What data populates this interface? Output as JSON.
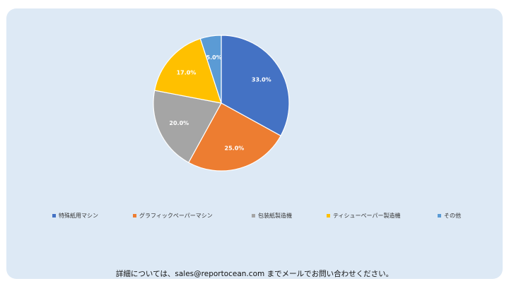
{
  "chart_data": {
    "type": "pie",
    "slices": [
      {
        "label": "特殊紙用マシン",
        "value": 33.0,
        "display": "33.0%",
        "color": "#4472C4"
      },
      {
        "label": "グラフィックペーパーマシン",
        "value": 25.0,
        "display": "25.0%",
        "color": "#ED7D31"
      },
      {
        "label": "包装紙製造機",
        "value": 20.0,
        "display": "20.0%",
        "color": "#A5A5A5"
      },
      {
        "label": "ティシューペーパー製造機",
        "value": 17.0,
        "display": "17.0%",
        "color": "#FFC000"
      },
      {
        "label": "その他",
        "value": 5.0,
        "display": "5.0%",
        "color": "#5B9BD5"
      }
    ],
    "legend_position": "bottom",
    "start_angle": "12 o'clock, clockwise"
  },
  "footer": {
    "text": "詳細については、sales@reportocean.com までメールでお問い合わせください。"
  }
}
